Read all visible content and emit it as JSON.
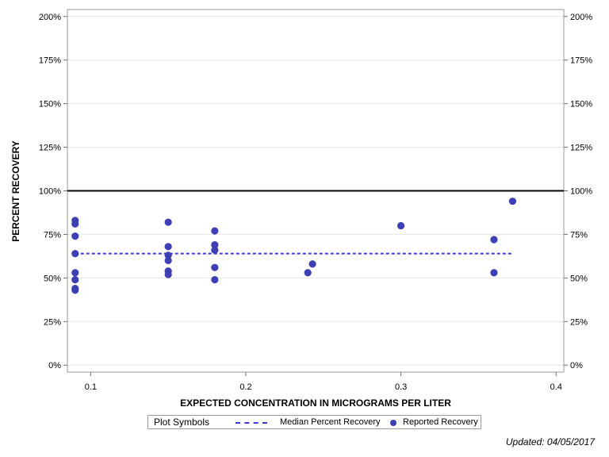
{
  "chart_data": {
    "type": "scatter",
    "xlabel": "EXPECTED CONCENTRATION IN MICROGRAMS PER LITER",
    "ylabel": "PERCENT RECOVERY",
    "xlim": [
      0.085,
      0.405
    ],
    "ylim": [
      -4,
      204
    ],
    "x_ticks": [
      0.1,
      0.2,
      0.3,
      0.4
    ],
    "x_tick_labels": [
      "0.1",
      "0.2",
      "0.3",
      "0.4"
    ],
    "y_ticks": [
      0,
      25,
      50,
      75,
      100,
      125,
      150,
      175,
      200
    ],
    "y_tick_labels": [
      "0%",
      "25%",
      "50%",
      "75%",
      "100%",
      "125%",
      "150%",
      "175%",
      "200%"
    ],
    "reference_line": {
      "y": 100,
      "color": "#000000"
    },
    "median": {
      "y": 64,
      "x_range": [
        0.09,
        0.372
      ],
      "color": "#3a3ad8"
    },
    "series": [
      {
        "name": "Reported Recovery",
        "color": "#3f3fb5",
        "points": [
          {
            "x": 0.09,
            "y": 83
          },
          {
            "x": 0.09,
            "y": 81
          },
          {
            "x": 0.09,
            "y": 74
          },
          {
            "x": 0.09,
            "y": 64
          },
          {
            "x": 0.09,
            "y": 53
          },
          {
            "x": 0.09,
            "y": 49
          },
          {
            "x": 0.09,
            "y": 44
          },
          {
            "x": 0.09,
            "y": 43
          },
          {
            "x": 0.15,
            "y": 82
          },
          {
            "x": 0.15,
            "y": 68
          },
          {
            "x": 0.15,
            "y": 63
          },
          {
            "x": 0.15,
            "y": 60
          },
          {
            "x": 0.15,
            "y": 54
          },
          {
            "x": 0.15,
            "y": 52
          },
          {
            "x": 0.18,
            "y": 77
          },
          {
            "x": 0.18,
            "y": 69
          },
          {
            "x": 0.18,
            "y": 66
          },
          {
            "x": 0.18,
            "y": 56
          },
          {
            "x": 0.18,
            "y": 49
          },
          {
            "x": 0.24,
            "y": 53
          },
          {
            "x": 0.243,
            "y": 58
          },
          {
            "x": 0.3,
            "y": 80
          },
          {
            "x": 0.36,
            "y": 72
          },
          {
            "x": 0.36,
            "y": 53
          },
          {
            "x": 0.372,
            "y": 94
          }
        ]
      }
    ]
  },
  "legend": {
    "title": "Plot Symbols",
    "median_label": "Median Percent Recovery",
    "recovery_label": "Reported Recovery"
  },
  "footer": {
    "updated": "Updated: 04/05/2017"
  }
}
